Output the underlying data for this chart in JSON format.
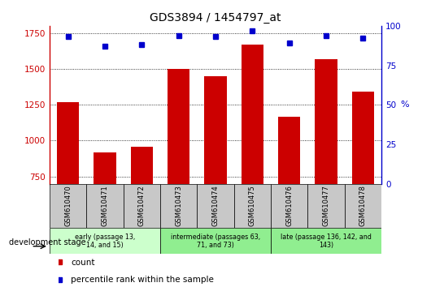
{
  "title": "GDS3894 / 1454797_at",
  "samples": [
    "GSM610470",
    "GSM610471",
    "GSM610472",
    "GSM610473",
    "GSM610474",
    "GSM610475",
    "GSM610476",
    "GSM610477",
    "GSM610478"
  ],
  "counts": [
    1270,
    920,
    955,
    1500,
    1450,
    1670,
    1165,
    1565,
    1340
  ],
  "percentile_ranks": [
    93,
    87,
    88,
    94,
    93,
    97,
    89,
    94,
    92
  ],
  "ylim_left": [
    700,
    1800
  ],
  "ylim_right": [
    0,
    100
  ],
  "yticks_left": [
    750,
    1000,
    1250,
    1500,
    1750
  ],
  "yticks_right": [
    0,
    25,
    50,
    75,
    100
  ],
  "groups": [
    {
      "label": "early (passage 13,\n14, and 15)",
      "indices": [
        0,
        1,
        2
      ],
      "color": "#ccffcc"
    },
    {
      "label": "intermediate (passages 63,\n71, and 73)",
      "indices": [
        3,
        4,
        5
      ],
      "color": "#90EE90"
    },
    {
      "label": "late (passage 136, 142, and\n143)",
      "indices": [
        6,
        7,
        8
      ],
      "color": "#90EE90"
    }
  ],
  "bar_color": "#CC0000",
  "dot_color": "#0000CC",
  "tick_label_color_left": "#CC0000",
  "tick_label_color_right": "#0000CC",
  "dev_stage_label": "development stage",
  "legend_count_label": "count",
  "legend_percentile_label": "percentile rank within the sample",
  "xtick_box_color": "#C8C8C8",
  "plot_border_color": "#000000"
}
